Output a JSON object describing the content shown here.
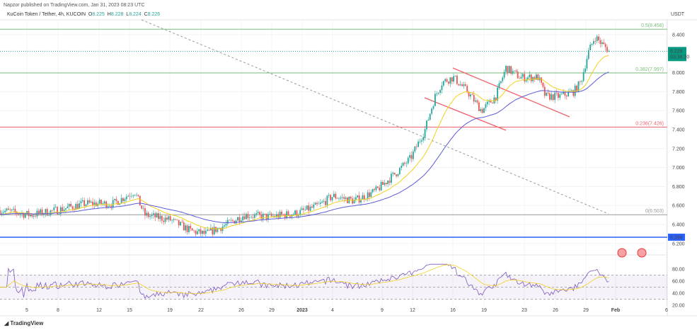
{
  "header": {
    "published": "Napzor published on TradingView.com, Jan 31, 2023 08:23 UTC",
    "symbol": "KuCoin Token / Tether, 4h, KUCOIN",
    "o_label": "O",
    "o": "8.225",
    "h_label": "H",
    "h": "8.228",
    "l_label": "L",
    "l": "8.224",
    "c_label": "C",
    "c": "8.226"
  },
  "footer": {
    "brand": "TradingView"
  },
  "colors": {
    "up": "#26a69a",
    "down": "#ef5350",
    "ma_fast": "#f2d11f",
    "ma_slow": "#5b5bd6",
    "fib_green": "#7cbf7a",
    "fib_red": "#f0626b",
    "fib_gray": "#999999",
    "support": "#2962ff",
    "rsi": "#7e57c2"
  },
  "chart_data": {
    "type": "candlestick",
    "title": "KuCoin Token / Tether, 4h, KUCOIN",
    "currency": "USDT",
    "ylim": [
      6.15,
      8.55
    ],
    "y_ticks": [
      "8.400",
      "8.000",
      "7.800",
      "7.600",
      "7.400",
      "7.200",
      "7.000",
      "6.800",
      "6.600",
      "6.400",
      "6.200"
    ],
    "x_ticks": [
      "5",
      "8",
      "12",
      "15",
      "19",
      "22",
      "26",
      "29",
      "2023",
      "4",
      "9",
      "12",
      "16",
      "19",
      "23",
      "26",
      "29",
      "Feb",
      "6"
    ],
    "approx_close_path": {
      "day_index": [
        0,
        3,
        5.6,
        8.4,
        11.2,
        13.3,
        14.3,
        16.8,
        18.9,
        20.3,
        22.4,
        24.1,
        26.6,
        29.4,
        31.5,
        32.9,
        35,
        37.1,
        39.2,
        40.6,
        42,
        43,
        43.7,
        44.8,
        46.2,
        47.6,
        49,
        50,
        51.4,
        53.2,
        53.9,
        55.3,
        56.7,
        57.4,
        58.1,
        58.8,
        59.5,
        60.2
      ],
      "close": [
        6.55,
        6.5,
        6.55,
        6.62,
        6.62,
        6.75,
        6.5,
        6.45,
        6.33,
        6.3,
        6.4,
        6.5,
        6.48,
        6.52,
        6.6,
        6.7,
        6.65,
        6.75,
        6.95,
        7.1,
        7.4,
        7.75,
        7.9,
        7.95,
        7.8,
        7.6,
        7.75,
        8.05,
        7.95,
        7.95,
        7.75,
        7.75,
        7.8,
        7.9,
        8.2,
        8.38,
        8.3,
        8.23
      ]
    },
    "last_price": "8.226",
    "countdown": "03:36:30",
    "fib_levels": [
      {
        "label": "0.5(8.458)",
        "value": 8.458
      },
      {
        "label": "0.382(7.997)",
        "value": 7.997
      },
      {
        "label": "0.236(7.426)",
        "value": 7.426
      },
      {
        "label": "0(6.503)",
        "value": 6.503
      }
    ],
    "support": {
      "label": "6.266",
      "value": 6.266
    },
    "rsi": {
      "ticks": [
        "80.00",
        "60.00",
        "40.00",
        "20.00"
      ],
      "upper": 70,
      "lower": 30
    }
  }
}
